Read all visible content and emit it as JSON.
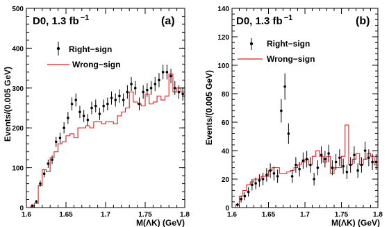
{
  "chart_data": [
    {
      "type": "step-histogram-with-points",
      "panel_tag": "(a)",
      "experiment": "D0, 1.3 fb",
      "luminosity_superscript": "−1",
      "xlabel": "M(ΛK) (GeV)",
      "ylabel": "Events/(0.005 GeV)",
      "xlim": [
        1.6,
        1.8
      ],
      "ylim": [
        0,
        500
      ],
      "x_ticks": [
        "1.6",
        "1.65",
        "1.7",
        "1.75",
        "1.8"
      ],
      "y_ticks": [
        "0",
        "100",
        "200",
        "300",
        "400",
        "500"
      ],
      "legend": {
        "placement": "top-left",
        "entries": [
          "Right−sign",
          "Wrong−sign"
        ]
      },
      "series": [
        {
          "name": "Right−sign",
          "style": "points-with-errors",
          "color": "#000000",
          "x": [
            1.6075,
            1.6125,
            1.6175,
            1.6225,
            1.6275,
            1.6325,
            1.6375,
            1.6425,
            1.6475,
            1.6525,
            1.6575,
            1.6625,
            1.6675,
            1.6725,
            1.6775,
            1.6825,
            1.6875,
            1.6925,
            1.6975,
            1.7025,
            1.7075,
            1.7125,
            1.7175,
            1.7225,
            1.7275,
            1.7325,
            1.7375,
            1.7425,
            1.7475,
            1.7525,
            1.7575,
            1.7625,
            1.7675,
            1.7725,
            1.7775,
            1.7825,
            1.7875,
            1.7925,
            1.7975
          ],
          "y": [
            5,
            15,
            60,
            85,
            110,
            120,
            165,
            175,
            200,
            225,
            260,
            270,
            240,
            230,
            220,
            250,
            255,
            235,
            255,
            260,
            275,
            270,
            280,
            270,
            290,
            310,
            300,
            260,
            290,
            295,
            300,
            310,
            320,
            340,
            340,
            330,
            300,
            290,
            285
          ]
        },
        {
          "name": "Wrong−sign",
          "style": "step",
          "color": "#e8191d",
          "bin_edges": [
            1.605,
            1.61,
            1.615,
            1.62,
            1.625,
            1.63,
            1.635,
            1.64,
            1.645,
            1.65,
            1.655,
            1.66,
            1.665,
            1.67,
            1.675,
            1.68,
            1.685,
            1.69,
            1.695,
            1.7,
            1.705,
            1.71,
            1.715,
            1.72,
            1.725,
            1.73,
            1.735,
            1.74,
            1.745,
            1.75,
            1.755,
            1.76,
            1.765,
            1.77,
            1.775,
            1.78,
            1.785,
            1.79,
            1.795,
            1.8
          ],
          "counts": [
            2,
            10,
            55,
            95,
            90,
            125,
            140,
            160,
            165,
            180,
            185,
            175,
            200,
            200,
            205,
            200,
            215,
            215,
            210,
            215,
            215,
            210,
            230,
            240,
            250,
            290,
            265,
            260,
            255,
            285,
            260,
            265,
            280,
            270,
            280,
            335,
            290,
            300,
            290
          ]
        }
      ]
    },
    {
      "type": "step-histogram-with-points",
      "panel_tag": "(b)",
      "experiment": "D0, 1.3 fb",
      "luminosity_superscript": "−1",
      "xlabel": "M(ΛK) (GeV)",
      "ylabel": "Events/(0.005 GeV)",
      "xlim": [
        1.6,
        1.8
      ],
      "ylim": [
        0,
        140
      ],
      "x_ticks": [
        "1.6",
        "1.65",
        "1.7",
        "1.75",
        "1.8"
      ],
      "y_ticks": [
        "0",
        "20",
        "40",
        "60",
        "80",
        "100",
        "120",
        "140"
      ],
      "legend": {
        "placement": "top-left",
        "entries": [
          "Right−sign",
          "Wrong−sign"
        ]
      },
      "series": [
        {
          "name": "Right−sign",
          "style": "points-with-errors",
          "color": "#000000",
          "x": [
            1.6075,
            1.6125,
            1.6175,
            1.6225,
            1.6275,
            1.6325,
            1.6375,
            1.6425,
            1.6475,
            1.6525,
            1.6575,
            1.6625,
            1.6675,
            1.6725,
            1.6775,
            1.6825,
            1.6875,
            1.6925,
            1.6975,
            1.7025,
            1.7075,
            1.7125,
            1.7175,
            1.7225,
            1.7275,
            1.7325,
            1.7375,
            1.7425,
            1.7475,
            1.7525,
            1.7575,
            1.7625,
            1.7675,
            1.7725,
            1.7775,
            1.7825,
            1.7875,
            1.7925,
            1.7975
          ],
          "y": [
            2,
            6,
            8,
            11,
            16,
            17,
            19,
            20,
            23,
            26,
            24,
            22,
            68,
            85,
            52,
            22,
            30,
            27,
            33,
            34,
            30,
            20,
            28,
            37,
            34,
            38,
            28,
            32,
            35,
            29,
            25,
            30,
            37,
            26,
            30,
            40,
            35,
            32,
            32
          ]
        },
        {
          "name": "Wrong−sign",
          "style": "step",
          "color": "#e8191d",
          "bin_edges": [
            1.605,
            1.61,
            1.615,
            1.62,
            1.625,
            1.63,
            1.635,
            1.64,
            1.645,
            1.65,
            1.655,
            1.66,
            1.665,
            1.67,
            1.675,
            1.68,
            1.685,
            1.69,
            1.695,
            1.7,
            1.705,
            1.71,
            1.715,
            1.72,
            1.725,
            1.73,
            1.735,
            1.74,
            1.745,
            1.75,
            1.755,
            1.76,
            1.765,
            1.77,
            1.775,
            1.78,
            1.785,
            1.79,
            1.795,
            1.8
          ],
          "counts": [
            2,
            8,
            12,
            16,
            18,
            20,
            20,
            22,
            22,
            26,
            28,
            28,
            24,
            24,
            25,
            26,
            28,
            30,
            32,
            34,
            30,
            36,
            40,
            36,
            32,
            36,
            24,
            28,
            28,
            36,
            58,
            30,
            34,
            38,
            30,
            34,
            38,
            36,
            30
          ]
        }
      ]
    }
  ]
}
